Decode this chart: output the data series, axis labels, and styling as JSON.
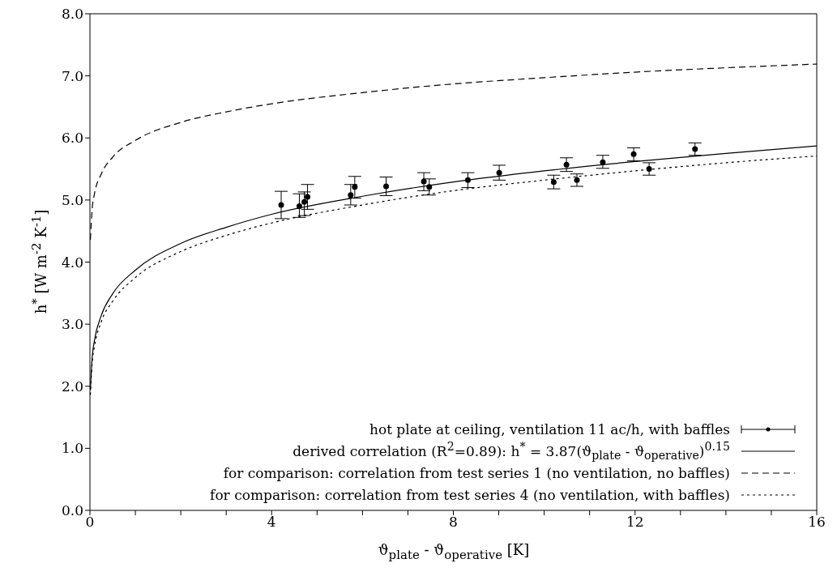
{
  "chart_data": {
    "type": "scatter",
    "xlabel": "ϑ$_{plate}$ - ϑ$_{operative}$ [K]",
    "ylabel": "h$^{*}$ [W m$^{-2}$ K$^{-1}$]",
    "xlim": [
      0,
      16
    ],
    "ylim": [
      0,
      8
    ],
    "xticks": [
      0,
      {
        "value": 1,
        "label": null
      },
      {
        "value": 2,
        "label": null
      },
      {
        "value": 3,
        "label": null
      },
      4,
      {
        "value": 5,
        "label": null
      },
      {
        "value": 6,
        "label": null
      },
      {
        "value": 7,
        "label": null
      },
      8,
      {
        "value": 9,
        "label": null
      },
      {
        "value": 10,
        "label": null
      },
      {
        "value": 11,
        "label": null
      },
      12,
      {
        "value": 13,
        "label": null
      },
      {
        "value": 14,
        "label": null
      },
      {
        "value": 15,
        "label": null
      },
      16
    ],
    "yticks": [
      {
        "value": 0,
        "label": "0.0"
      },
      {
        "value": 1,
        "label": "1.0"
      },
      {
        "value": 2,
        "label": "2.0"
      },
      {
        "value": 3,
        "label": "3.0"
      },
      {
        "value": 4,
        "label": "4.0"
      },
      {
        "value": 5,
        "label": "5.0"
      },
      {
        "value": 6,
        "label": "6.0"
      },
      {
        "value": 7,
        "label": "7.0"
      },
      {
        "value": 8,
        "label": "8.0"
      }
    ],
    "grid": false,
    "legend": "bottom right",
    "series": [
      {
        "name": "hot plate at ceiling, ventilation 11 ac/h, with baffles",
        "type": "scatter",
        "color": "#000000",
        "marker": "circle",
        "x": [
          4.21,
          4.61,
          4.72,
          4.79,
          5.74,
          5.83,
          6.52,
          7.35,
          7.47,
          8.32,
          9.01,
          10.21,
          10.49,
          10.72,
          11.29,
          11.97,
          12.31,
          13.32
        ],
        "values": [
          4.92,
          4.9,
          4.97,
          5.05,
          5.08,
          5.21,
          5.22,
          5.3,
          5.21,
          5.32,
          5.44,
          5.29,
          5.57,
          5.32,
          5.61,
          5.74,
          5.5,
          5.82
        ],
        "errors": [
          [
            4.7,
            5.14
          ],
          [
            4.72,
            5.1
          ],
          [
            4.75,
            5.13
          ],
          [
            4.85,
            5.25
          ],
          [
            4.92,
            5.25
          ],
          [
            5.03,
            5.38
          ],
          [
            5.07,
            5.37
          ],
          [
            5.15,
            5.44
          ],
          [
            5.08,
            5.34
          ],
          [
            5.2,
            5.44
          ],
          [
            5.32,
            5.56
          ],
          [
            5.18,
            5.4
          ],
          [
            5.46,
            5.68
          ],
          [
            5.22,
            5.42
          ],
          [
            5.51,
            5.72
          ],
          [
            5.63,
            5.84
          ],
          [
            5.4,
            5.6
          ],
          [
            5.72,
            5.92
          ]
        ]
      },
      {
        "name": "derived correlation (R$^{2}$=0.89): h$^{*}$ = 3.87(ϑ$_{plate}$ - ϑ$_{operative}$)$^{0.15}$",
        "type": "line",
        "color": "#000000",
        "line_style": "solid",
        "marker": "none",
        "x": [
          0.01,
          0.05,
          0.1,
          0.25,
          0.5,
          1,
          2,
          3,
          4,
          6,
          8,
          10,
          12,
          14,
          16
        ],
        "values": [
          1.94,
          2.47,
          2.74,
          3.14,
          3.49,
          3.87,
          4.3,
          4.56,
          4.77,
          5.06,
          5.29,
          5.47,
          5.62,
          5.75,
          5.87
        ]
      },
      {
        "name": "for comparison: correlation from test series 1 (no ventilation, no baffles)",
        "type": "line",
        "color": "#000000",
        "line_style": "dashed",
        "marker": "none",
        "x": [
          0.01,
          0.05,
          0.1,
          0.25,
          0.5,
          1,
          2,
          3,
          4,
          6,
          8,
          10,
          12,
          14,
          16
        ],
        "values": [
          4.36,
          4.86,
          5.1,
          5.42,
          5.69,
          5.96,
          6.25,
          6.42,
          6.55,
          6.73,
          6.87,
          6.97,
          7.06,
          7.13,
          7.19
        ]
      },
      {
        "name": "for comparison: correlation from test series 4 (no ventilation, with baffles)",
        "type": "line",
        "color": "#000000",
        "line_style": "dotted",
        "marker": "none",
        "x": [
          0.01,
          0.05,
          0.1,
          0.25,
          0.5,
          1,
          2,
          3,
          4,
          6,
          8,
          10,
          12,
          14,
          16
        ],
        "values": [
          1.86,
          2.38,
          2.64,
          3.04,
          3.37,
          3.75,
          4.17,
          4.43,
          4.63,
          4.92,
          5.15,
          5.32,
          5.47,
          5.6,
          5.71
        ]
      }
    ]
  }
}
